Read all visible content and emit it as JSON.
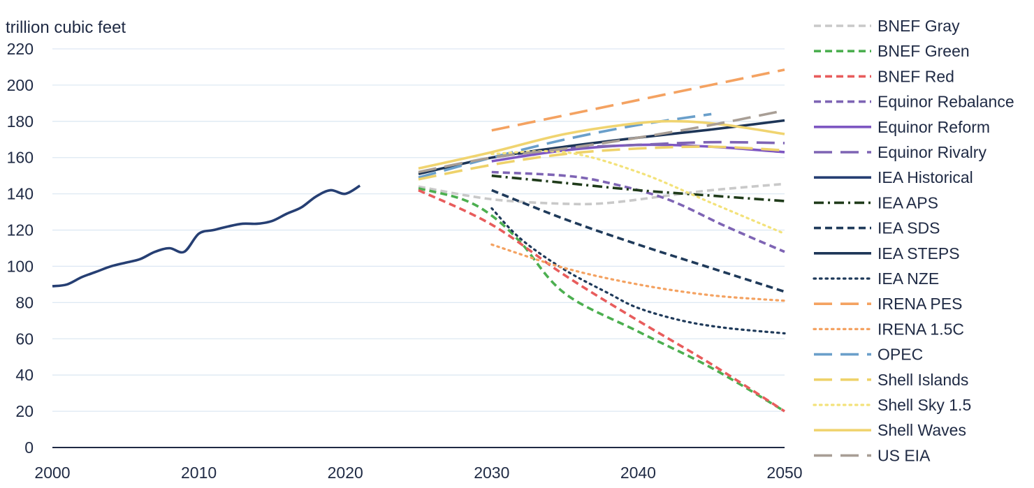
{
  "chart_data": {
    "type": "line",
    "ylabel": "trillion cubic feet",
    "xlim": [
      2000,
      2050
    ],
    "ylim": [
      0,
      220
    ],
    "x_ticks": [
      2000,
      2010,
      2020,
      2030,
      2040,
      2050
    ],
    "y_ticks": [
      0,
      20,
      40,
      60,
      80,
      100,
      120,
      140,
      160,
      180,
      200,
      220
    ],
    "grid": "horizontal",
    "legend_position": "right",
    "series": [
      {
        "name": "BNEF Gray",
        "color": "#c9c9c9",
        "style": "dash",
        "x": [
          2025,
          2030,
          2035,
          2038,
          2042,
          2045,
          2050
        ],
        "y": [
          144,
          137,
          134.5,
          135,
          139,
          142,
          145.5
        ]
      },
      {
        "name": "BNEF Green",
        "color": "#4caf50",
        "style": "dash",
        "x": [
          2025,
          2028,
          2030,
          2032,
          2035,
          2040,
          2045,
          2050
        ],
        "y": [
          143,
          137,
          128,
          113,
          85,
          64,
          44,
          20
        ]
      },
      {
        "name": "BNEF Red",
        "color": "#e85c5c",
        "style": "dash",
        "x": [
          2025,
          2030,
          2035,
          2040,
          2045,
          2050
        ],
        "y": [
          142,
          123,
          95,
          70,
          46,
          20
        ]
      },
      {
        "name": "Equinor Rebalance",
        "color": "#7e64b4",
        "style": "dash",
        "x": [
          2030,
          2035,
          2038,
          2042,
          2046,
          2050
        ],
        "y": [
          152,
          150,
          146,
          137,
          122,
          108
        ]
      },
      {
        "name": "Equinor Reform",
        "color": "#7e57c2",
        "style": "solid",
        "x": [
          2030,
          2035,
          2040,
          2045,
          2050
        ],
        "y": [
          158,
          164,
          167,
          166,
          163
        ]
      },
      {
        "name": "Equinor Rivalry",
        "color": "#7e64b4",
        "style": "longdash",
        "x": [
          2030,
          2035,
          2040,
          2045,
          2050
        ],
        "y": [
          160,
          165,
          167,
          168.5,
          168
        ]
      },
      {
        "name": "IEA Historical",
        "color": "#263f73",
        "style": "solid",
        "x": [
          2000,
          2001,
          2002,
          2003,
          2004,
          2005,
          2006,
          2007,
          2008,
          2009,
          2010,
          2011,
          2012,
          2013,
          2014,
          2015,
          2016,
          2017,
          2018,
          2019,
          2020,
          2021
        ],
        "y": [
          89,
          90,
          94,
          97,
          100,
          102,
          104,
          108,
          110,
          108,
          118,
          120,
          122,
          123.5,
          123.5,
          125,
          129,
          132.5,
          138.5,
          142,
          140,
          144.5
        ]
      },
      {
        "name": "IEA APS",
        "color": "#1f3b1a",
        "style": "dashdot",
        "x": [
          2030,
          2035,
          2040,
          2045,
          2050
        ],
        "y": [
          150,
          146,
          142,
          139,
          136
        ]
      },
      {
        "name": "IEA SDS",
        "color": "#1f3a5a",
        "style": "dash",
        "x": [
          2030,
          2035,
          2040,
          2045,
          2050
        ],
        "y": [
          142,
          126,
          112,
          99,
          86
        ]
      },
      {
        "name": "IEA STEPS",
        "color": "#1d3557",
        "style": "solid",
        "x": [
          2025,
          2030,
          2035,
          2040,
          2045,
          2050
        ],
        "y": [
          151,
          160,
          166,
          171,
          175.5,
          180.5
        ]
      },
      {
        "name": "IEA NZE",
        "color": "#1f3a5a",
        "style": "dot",
        "x": [
          2030,
          2032,
          2035,
          2038,
          2040,
          2043,
          2046,
          2050
        ],
        "y": [
          132,
          115,
          98,
          85,
          77,
          70,
          66,
          63
        ]
      },
      {
        "name": "IRENA PES",
        "color": "#f4a261",
        "style": "longdash",
        "x": [
          2030,
          2050
        ],
        "y": [
          175,
          208.5
        ]
      },
      {
        "name": "IRENA 1.5C",
        "color": "#f4a261",
        "style": "dot",
        "x": [
          2030,
          2035,
          2040,
          2045,
          2050
        ],
        "y": [
          112,
          99,
          90,
          84,
          81
        ]
      },
      {
        "name": "OPEC",
        "color": "#6a9fca",
        "style": "longdash",
        "x": [
          2025,
          2030,
          2035,
          2040,
          2045
        ],
        "y": [
          149,
          160,
          170,
          178,
          184
        ]
      },
      {
        "name": "Shell Islands",
        "color": "#eed26a",
        "style": "longdash",
        "x": [
          2025,
          2030,
          2035,
          2040,
          2045,
          2050
        ],
        "y": [
          148,
          156,
          162,
          165,
          166,
          164
        ]
      },
      {
        "name": "Shell Sky 1.5",
        "color": "#f3e27a",
        "style": "dot",
        "x": [
          2030,
          2035,
          2040,
          2045,
          2050
        ],
        "y": [
          162,
          163,
          152,
          135,
          118
        ]
      },
      {
        "name": "Shell Waves",
        "color": "#f0d470",
        "style": "solid",
        "x": [
          2025,
          2030,
          2035,
          2040,
          2043,
          2046,
          2050
        ],
        "y": [
          154,
          163,
          173,
          179,
          180,
          178,
          173
        ]
      },
      {
        "name": "US EIA",
        "color": "#a89e95",
        "style": "longdash",
        "x": [
          2025,
          2030,
          2035,
          2040,
          2045,
          2050
        ],
        "y": [
          152,
          160,
          165,
          171,
          178,
          186
        ]
      }
    ]
  }
}
